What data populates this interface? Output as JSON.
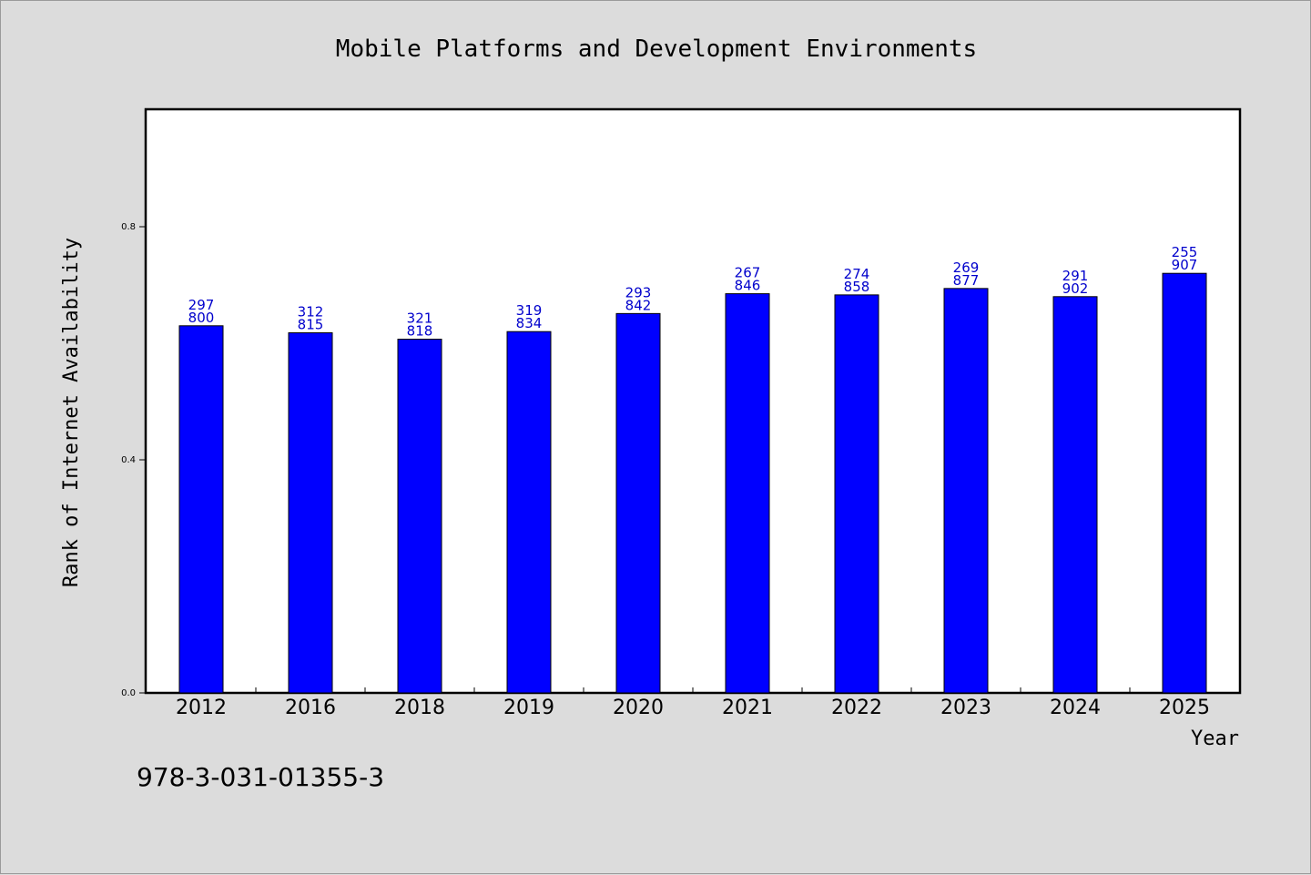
{
  "chart_data": {
    "type": "bar",
    "title": "Mobile Platforms and Development Environments",
    "xlabel": "Year",
    "ylabel": "Rank of Internet Availability",
    "categories": [
      "2012",
      "2016",
      "2018",
      "2019",
      "2020",
      "2021",
      "2022",
      "2023",
      "2024",
      "2025"
    ],
    "values": [
      0.63,
      0.618,
      0.607,
      0.62,
      0.651,
      0.685,
      0.683,
      0.694,
      0.68,
      0.72
    ],
    "data_labels": [
      [
        "297",
        "800"
      ],
      [
        "312",
        "815"
      ],
      [
        "321",
        "818"
      ],
      [
        "319",
        "834"
      ],
      [
        "293",
        "842"
      ],
      [
        "267",
        "846"
      ],
      [
        "274",
        "858"
      ],
      [
        "269",
        "877"
      ],
      [
        "291",
        "902"
      ],
      [
        "255",
        "907"
      ]
    ],
    "ylim": [
      0.0,
      1.0
    ],
    "yticks": [
      "0.0",
      "0.4",
      "0.8"
    ],
    "ytick_values": [
      0.0,
      0.4,
      0.8
    ],
    "grid": false,
    "bar_color": "#0000ff",
    "label_color": "#0000cc"
  },
  "footer": {
    "isbn": "978-3-031-01355-3"
  }
}
